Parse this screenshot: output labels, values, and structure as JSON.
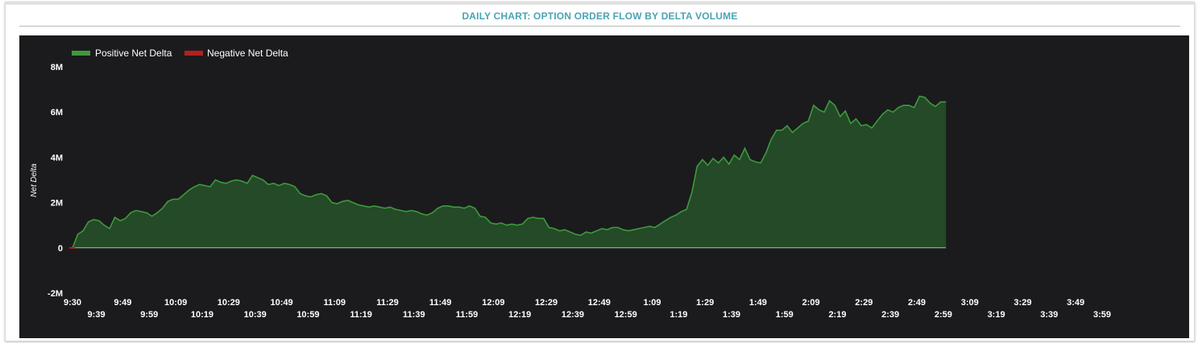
{
  "header": {
    "title": "DAILY CHART: OPTION ORDER FLOW BY DELTA VOLUME"
  },
  "colors": {
    "title": "#4aa3b5",
    "background": "#1b1b1d",
    "positive_line": "#3d9a3d",
    "positive_fill": "#244a27",
    "negative": "#b3201f",
    "text": "#ffffff"
  },
  "chart_data": {
    "type": "area",
    "ylabel": "Net Delta",
    "ylim": [
      -2000000,
      8000000
    ],
    "y_ticks": [
      {
        "value": 8000000,
        "label": "8M"
      },
      {
        "value": 6000000,
        "label": "6M"
      },
      {
        "value": 4000000,
        "label": "4M"
      },
      {
        "value": 2000000,
        "label": "2M"
      },
      {
        "value": 0,
        "label": "0"
      },
      {
        "value": -2000000,
        "label": "-2M"
      }
    ],
    "x_ticks_upper": [
      "9:30",
      "9:49",
      "10:09",
      "10:29",
      "10:49",
      "11:09",
      "11:29",
      "11:49",
      "12:09",
      "12:29",
      "12:49",
      "1:09",
      "1:29",
      "1:49",
      "2:09",
      "2:29",
      "2:49",
      "3:09",
      "3:29",
      "3:49"
    ],
    "x_ticks_lower": [
      "9:39",
      "9:59",
      "10:19",
      "10:39",
      "10:59",
      "11:19",
      "11:39",
      "11:59",
      "12:19",
      "12:39",
      "12:59",
      "1:19",
      "1:39",
      "1:59",
      "2:19",
      "2:39",
      "2:59",
      "3:19",
      "3:39",
      "3:59"
    ],
    "legend": {
      "placement": "top-left",
      "entries": [
        {
          "name": "Positive Net Delta",
          "color": "#3d9a3d"
        },
        {
          "name": "Negative Net Delta",
          "color": "#b3201f"
        }
      ]
    },
    "grid": false,
    "series": [
      {
        "name": "Positive Net Delta",
        "points": [
          [
            "9:30",
            0
          ],
          [
            "9:32",
            600000
          ],
          [
            "9:34",
            750000
          ],
          [
            "9:36",
            1150000
          ],
          [
            "9:38",
            1250000
          ],
          [
            "9:40",
            1200000
          ],
          [
            "9:42",
            1000000
          ],
          [
            "9:44",
            850000
          ],
          [
            "9:46",
            1350000
          ],
          [
            "9:48",
            1200000
          ],
          [
            "9:50",
            1300000
          ],
          [
            "9:52",
            1550000
          ],
          [
            "9:54",
            1650000
          ],
          [
            "9:56",
            1600000
          ],
          [
            "9:58",
            1550000
          ],
          [
            "10:00",
            1400000
          ],
          [
            "10:02",
            1550000
          ],
          [
            "10:04",
            1750000
          ],
          [
            "10:06",
            2050000
          ],
          [
            "10:08",
            2150000
          ],
          [
            "10:10",
            2150000
          ],
          [
            "10:12",
            2350000
          ],
          [
            "10:14",
            2550000
          ],
          [
            "10:16",
            2700000
          ],
          [
            "10:18",
            2800000
          ],
          [
            "10:20",
            2750000
          ],
          [
            "10:22",
            2700000
          ],
          [
            "10:24",
            3000000
          ],
          [
            "10:26",
            2900000
          ],
          [
            "10:28",
            2850000
          ],
          [
            "10:30",
            2950000
          ],
          [
            "10:32",
            3000000
          ],
          [
            "10:34",
            2950000
          ],
          [
            "10:36",
            2850000
          ],
          [
            "10:38",
            3200000
          ],
          [
            "10:40",
            3100000
          ],
          [
            "10:42",
            3000000
          ],
          [
            "10:44",
            2800000
          ],
          [
            "10:46",
            2850000
          ],
          [
            "10:48",
            2750000
          ],
          [
            "10:50",
            2850000
          ],
          [
            "10:52",
            2800000
          ],
          [
            "10:54",
            2700000
          ],
          [
            "10:56",
            2400000
          ],
          [
            "10:58",
            2300000
          ],
          [
            "11:00",
            2250000
          ],
          [
            "11:02",
            2350000
          ],
          [
            "11:04",
            2400000
          ],
          [
            "11:06",
            2300000
          ],
          [
            "11:08",
            2000000
          ],
          [
            "11:10",
            1950000
          ],
          [
            "11:12",
            2050000
          ],
          [
            "11:14",
            2100000
          ],
          [
            "11:16",
            2000000
          ],
          [
            "11:18",
            1900000
          ],
          [
            "11:20",
            1850000
          ],
          [
            "11:22",
            1800000
          ],
          [
            "11:24",
            1850000
          ],
          [
            "11:26",
            1800000
          ],
          [
            "11:28",
            1750000
          ],
          [
            "11:30",
            1800000
          ],
          [
            "11:32",
            1700000
          ],
          [
            "11:34",
            1650000
          ],
          [
            "11:36",
            1600000
          ],
          [
            "11:38",
            1650000
          ],
          [
            "11:40",
            1600000
          ],
          [
            "11:42",
            1500000
          ],
          [
            "11:44",
            1450000
          ],
          [
            "11:46",
            1550000
          ],
          [
            "11:48",
            1750000
          ],
          [
            "11:50",
            1850000
          ],
          [
            "11:52",
            1850000
          ],
          [
            "11:54",
            1800000
          ],
          [
            "11:56",
            1800000
          ],
          [
            "11:58",
            1750000
          ],
          [
            "12:00",
            1850000
          ],
          [
            "12:02",
            1750000
          ],
          [
            "12:04",
            1400000
          ],
          [
            "12:06",
            1350000
          ],
          [
            "12:08",
            1100000
          ],
          [
            "12:10",
            1050000
          ],
          [
            "12:12",
            1100000
          ],
          [
            "12:14",
            1000000
          ],
          [
            "12:16",
            1050000
          ],
          [
            "12:18",
            1000000
          ],
          [
            "12:20",
            1050000
          ],
          [
            "12:22",
            1300000
          ],
          [
            "12:24",
            1350000
          ],
          [
            "12:26",
            1300000
          ],
          [
            "12:28",
            1300000
          ],
          [
            "12:30",
            900000
          ],
          [
            "12:32",
            850000
          ],
          [
            "12:34",
            750000
          ],
          [
            "12:36",
            800000
          ],
          [
            "12:38",
            700000
          ],
          [
            "12:40",
            600000
          ],
          [
            "12:42",
            550000
          ],
          [
            "12:44",
            700000
          ],
          [
            "12:46",
            650000
          ],
          [
            "12:48",
            750000
          ],
          [
            "12:50",
            850000
          ],
          [
            "12:52",
            800000
          ],
          [
            "12:54",
            900000
          ],
          [
            "12:56",
            900000
          ],
          [
            "12:58",
            800000
          ],
          [
            "1:00",
            750000
          ],
          [
            "1:02",
            800000
          ],
          [
            "1:04",
            850000
          ],
          [
            "1:06",
            900000
          ],
          [
            "1:08",
            950000
          ],
          [
            "1:10",
            900000
          ],
          [
            "1:12",
            1050000
          ],
          [
            "1:14",
            1200000
          ],
          [
            "1:16",
            1350000
          ],
          [
            "1:18",
            1450000
          ],
          [
            "1:20",
            1600000
          ],
          [
            "1:22",
            1700000
          ],
          [
            "1:24",
            2450000
          ],
          [
            "1:26",
            3600000
          ],
          [
            "1:28",
            3900000
          ],
          [
            "1:30",
            3650000
          ],
          [
            "1:32",
            3950000
          ],
          [
            "1:34",
            3750000
          ],
          [
            "1:36",
            4000000
          ],
          [
            "1:38",
            3700000
          ],
          [
            "1:40",
            4100000
          ],
          [
            "1:42",
            3900000
          ],
          [
            "1:44",
            4400000
          ],
          [
            "1:46",
            3900000
          ],
          [
            "1:48",
            3800000
          ],
          [
            "1:50",
            3750000
          ],
          [
            "1:52",
            4200000
          ],
          [
            "1:54",
            4800000
          ],
          [
            "1:56",
            5200000
          ],
          [
            "1:58",
            5200000
          ],
          [
            "2:00",
            5400000
          ],
          [
            "2:02",
            5100000
          ],
          [
            "2:04",
            5300000
          ],
          [
            "2:06",
            5500000
          ],
          [
            "2:08",
            5600000
          ],
          [
            "2:10",
            6300000
          ],
          [
            "2:12",
            6100000
          ],
          [
            "2:14",
            6000000
          ],
          [
            "2:16",
            6500000
          ],
          [
            "2:18",
            6300000
          ],
          [
            "2:20",
            5800000
          ],
          [
            "2:22",
            6050000
          ],
          [
            "2:24",
            5500000
          ],
          [
            "2:26",
            5700000
          ],
          [
            "2:28",
            5400000
          ],
          [
            "2:30",
            5450000
          ],
          [
            "2:32",
            5300000
          ],
          [
            "2:34",
            5600000
          ],
          [
            "2:36",
            5900000
          ],
          [
            "2:38",
            6100000
          ],
          [
            "2:40",
            6000000
          ],
          [
            "2:42",
            6200000
          ],
          [
            "2:44",
            6300000
          ],
          [
            "2:46",
            6300000
          ],
          [
            "2:48",
            6200000
          ],
          [
            "2:50",
            6700000
          ],
          [
            "2:52",
            6650000
          ],
          [
            "2:54",
            6400000
          ],
          [
            "2:56",
            6250000
          ],
          [
            "2:58",
            6450000
          ],
          [
            "3:00",
            6450000
          ]
        ]
      },
      {
        "name": "Negative Net Delta",
        "points": [
          [
            "9:30",
            0
          ]
        ]
      }
    ]
  }
}
